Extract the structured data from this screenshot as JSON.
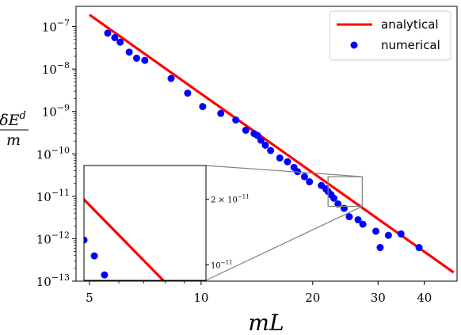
{
  "chart_data": {
    "type": "scatter",
    "xscale": "log",
    "yscale": "log",
    "xlim": [
      4.6,
      49
    ],
    "ylim": [
      1e-13,
      3e-07
    ],
    "xticks": [
      {
        "value": 5,
        "label": "5"
      },
      {
        "value": 10,
        "label": "10"
      },
      {
        "value": 20,
        "label": "20"
      },
      {
        "value": 30,
        "label": "30"
      },
      {
        "value": 40,
        "label": "40"
      }
    ],
    "yticks": [
      {
        "exp": -13,
        "base": "10",
        "sup": "−13"
      },
      {
        "exp": -12,
        "base": "10",
        "sup": "−12"
      },
      {
        "exp": -11,
        "base": "10",
        "sup": "−11"
      },
      {
        "exp": -10,
        "base": "10",
        "sup": "−10"
      },
      {
        "exp": -9,
        "base": "10",
        "sup": "−9"
      },
      {
        "exp": -8,
        "base": "10",
        "sup": "−8"
      },
      {
        "exp": -7,
        "base": "10",
        "sup": "−7"
      }
    ],
    "xlabel": "mL",
    "ylabel_numerator": "δE",
    "ylabel_sup": "d",
    "ylabel_denominator": "m",
    "grid": false,
    "legend_position": "top-right",
    "series": [
      {
        "name": "analytical",
        "style": "line",
        "color": "#ff0000",
        "x": [
          5.0,
          48.0
        ],
        "y": [
          1.9e-07,
          1.6e-13
        ]
      },
      {
        "name": "numerical",
        "style": "markers",
        "color": "#0000ff",
        "x": [
          5.6,
          5.85,
          6.05,
          6.4,
          6.7,
          7.05,
          8.3,
          9.2,
          10.1,
          11.3,
          12.4,
          13.2,
          13.9,
          14.2,
          14.5,
          14.9,
          15.4,
          16.3,
          17.1,
          17.8,
          18.2,
          19.0,
          19.6,
          21.1,
          21.7,
          22.0,
          22.4,
          22.8,
          23.4,
          24.3,
          25.1,
          26.5,
          27.3,
          29.6,
          30.4,
          32.0,
          34.6,
          38.7
        ],
        "y": [
          7e-08,
          5.5e-08,
          4.3e-08,
          2.5e-08,
          1.8e-08,
          1.6e-08,
          6e-09,
          2.7e-09,
          1.3e-09,
          9e-10,
          6.3e-10,
          3.6e-10,
          3e-10,
          2.7e-10,
          2.1e-10,
          1.6e-10,
          1.2e-10,
          8e-11,
          6.5e-11,
          4.8e-11,
          3.8e-11,
          2.9e-11,
          2.2e-11,
          1.8e-11,
          1.5e-11,
          1.3e-11,
          1.1e-11,
          9e-12,
          6.6e-12,
          5.2e-12,
          3.3e-12,
          2.8e-12,
          2.2e-12,
          1.5e-12,
          6.2e-13,
          1.2e-12,
          1.3e-12,
          6.2e-13
        ]
      }
    ],
    "inset": {
      "xlim": [
        22.0,
        27.2
      ],
      "ylim": [
        8.5e-12,
        2.85e-11
      ],
      "yticks": [
        {
          "value": 2e-11,
          "label_prefix": "2 × 10",
          "sup": "−11"
        },
        {
          "value": 1e-11,
          "label_prefix": "10",
          "sup": "−11"
        }
      ],
      "indicator_box": {
        "x": [
          22.0,
          27.2
        ],
        "y": [
          5.8e-12,
          2.9e-11
        ]
      }
    }
  },
  "colors": {
    "analytical": "#ff0000",
    "numerical": "#0000ff",
    "inset_connector": "#808080"
  }
}
